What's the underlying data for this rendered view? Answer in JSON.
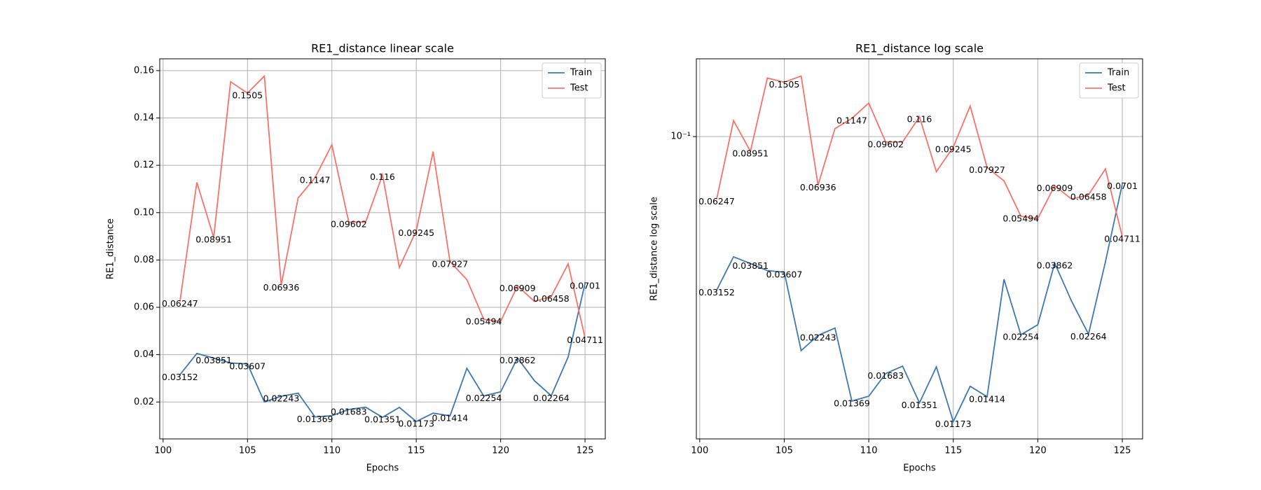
{
  "chart_data": [
    {
      "type": "line",
      "title": "RE1_distance linear scale",
      "xlabel": "Epochs",
      "ylabel": "RE1_distance",
      "yscale": "linear",
      "grid": true,
      "legend": "upper right",
      "xlim": [
        99.8,
        126.2
      ],
      "xticks": [
        100,
        105,
        110,
        115,
        120,
        125
      ],
      "ylim": [
        0.0044,
        0.165
      ],
      "yticks": [
        {
          "value": 0.02,
          "label": "0.02"
        },
        {
          "value": 0.04,
          "label": "0.04"
        },
        {
          "value": 0.06,
          "label": "0.06"
        },
        {
          "value": 0.08,
          "label": "0.08"
        },
        {
          "value": 0.1,
          "label": "0.10"
        },
        {
          "value": 0.12,
          "label": "0.12"
        },
        {
          "value": 0.14,
          "label": "0.14"
        },
        {
          "value": 0.16,
          "label": "0.16"
        }
      ],
      "x": [
        101,
        102,
        103,
        104,
        105,
        106,
        107,
        108,
        109,
        110,
        111,
        112,
        113,
        114,
        115,
        116,
        117,
        118,
        119,
        120,
        121,
        122,
        123,
        124,
        125
      ],
      "series": [
        {
          "name": "Train",
          "color": "#3b78b5",
          "label_color": "#0000ff",
          "values": [
            0.03152,
            0.0405,
            0.03851,
            0.0365,
            0.03607,
            0.02,
            0.02243,
            0.0237,
            0.01369,
            0.0142,
            0.01683,
            0.0178,
            0.01351,
            0.0177,
            0.01173,
            0.0153,
            0.01414,
            0.0342,
            0.02254,
            0.0243,
            0.03862,
            0.029,
            0.02264,
            0.039,
            0.0701
          ],
          "value_labels": [
            "0.03152",
            null,
            "0.03851",
            null,
            "0.03607",
            null,
            "0.02243",
            null,
            "0.01369",
            null,
            "0.01683",
            null,
            "0.01351",
            null,
            "0.01173",
            null,
            "0.01414",
            null,
            "0.02254",
            null,
            "0.03862",
            null,
            "0.02264",
            null,
            "0.0701"
          ]
        },
        {
          "name": "Test",
          "color": "#f87268",
          "label_color": "#ff0000",
          "values": [
            0.06247,
            0.1128,
            0.08951,
            0.1553,
            0.1505,
            0.1577,
            0.06936,
            0.1062,
            0.1147,
            0.1287,
            0.09602,
            0.096,
            0.116,
            0.0768,
            0.09245,
            0.1258,
            0.07927,
            0.0717,
            0.05494,
            0.054,
            0.06909,
            0.0625,
            0.06458,
            0.0784,
            0.04711
          ],
          "value_labels": [
            "0.06247",
            null,
            "0.08951",
            null,
            "0.1505",
            null,
            "0.06936",
            null,
            "0.1147",
            null,
            "0.09602",
            null,
            "0.116",
            null,
            "0.09245",
            null,
            "0.07927",
            null,
            "0.05494",
            null,
            "0.06909",
            null,
            "0.06458",
            null,
            "0.04711"
          ]
        }
      ]
    },
    {
      "type": "line",
      "title": "RE1_distance log scale",
      "xlabel": "Epochs",
      "ylabel": "RE1_distance log scale",
      "yscale": "log",
      "grid": true,
      "legend": "upper right",
      "xlim": [
        99.8,
        126.2
      ],
      "xticks": [
        100,
        105,
        110,
        115,
        120,
        125
      ],
      "ylim": [
        0.0103,
        0.1795
      ],
      "yticks": [
        {
          "value": 0.1,
          "label": "10⁻¹"
        }
      ],
      "x": [
        101,
        102,
        103,
        104,
        105,
        106,
        107,
        108,
        109,
        110,
        111,
        112,
        113,
        114,
        115,
        116,
        117,
        118,
        119,
        120,
        121,
        122,
        123,
        124,
        125
      ],
      "series": [
        {
          "name": "Train",
          "color": "#3b78b5",
          "label_color": "#0000ff",
          "values": [
            0.03152,
            0.0405,
            0.03851,
            0.0365,
            0.03607,
            0.02,
            0.02243,
            0.0237,
            0.01369,
            0.0142,
            0.01683,
            0.0178,
            0.01351,
            0.0177,
            0.01173,
            0.0153,
            0.01414,
            0.0342,
            0.02254,
            0.0243,
            0.03862,
            0.029,
            0.02264,
            0.039,
            0.0701
          ],
          "value_labels": [
            "0.03152",
            null,
            "0.03851",
            null,
            "0.03607",
            null,
            "0.02243",
            null,
            "0.01369",
            null,
            "0.01683",
            null,
            "0.01351",
            null,
            "0.01173",
            null,
            "0.01414",
            null,
            "0.02254",
            null,
            "0.03862",
            null,
            "0.02264",
            null,
            "0.0701"
          ]
        },
        {
          "name": "Test",
          "color": "#f87268",
          "label_color": "#ff0000",
          "values": [
            0.06247,
            0.1128,
            0.08951,
            0.1553,
            0.1505,
            0.1577,
            0.06936,
            0.1062,
            0.1147,
            0.1287,
            0.09602,
            0.096,
            0.116,
            0.0768,
            0.09245,
            0.1258,
            0.07927,
            0.0717,
            0.05494,
            0.054,
            0.06909,
            0.0625,
            0.06458,
            0.0784,
            0.04711
          ],
          "value_labels": [
            "0.06247",
            null,
            "0.08951",
            null,
            "0.1505",
            null,
            "0.06936",
            null,
            "0.1147",
            null,
            "0.09602",
            null,
            "0.116",
            null,
            "0.09245",
            null,
            "0.07927",
            null,
            "0.05494",
            null,
            "0.06909",
            null,
            "0.06458",
            null,
            "0.04711"
          ]
        }
      ]
    }
  ]
}
